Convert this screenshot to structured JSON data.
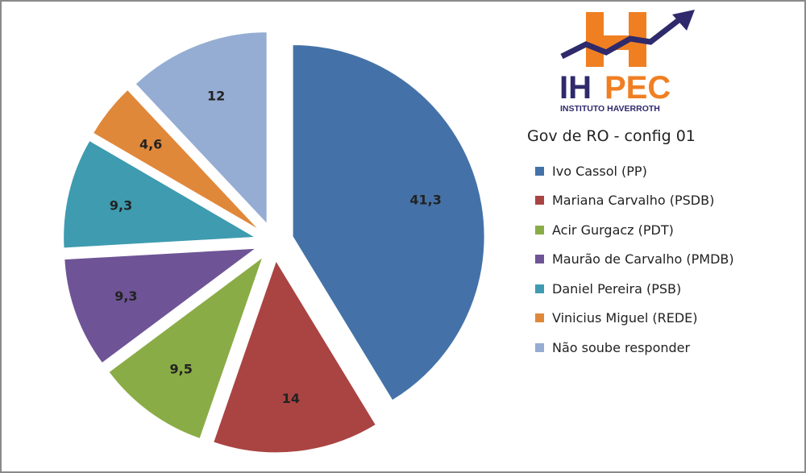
{
  "chart_data": {
    "type": "pie",
    "title": "Gov de RO - config 01",
    "legend_position": "right",
    "labels": [
      "Ivo Cassol (PP)",
      "Mariana Carvalho (PSDB)",
      "Acir Gurgacz (PDT)",
      "Maurão de Carvalho (PMDB)",
      "Daniel Pereira (PSB)",
      "Vinicius Miguel (REDE)",
      "Não soube responder"
    ],
    "values": [
      41.3,
      14,
      9.5,
      9.3,
      9.3,
      4.6,
      12
    ],
    "data_labels": [
      "41,3",
      "14",
      "9,5",
      "9,3",
      "9,3",
      "4,6",
      "12"
    ],
    "colors": [
      "#4472a8",
      "#a94442",
      "#8aac46",
      "#6e5496",
      "#3e9bb0",
      "#e0883a",
      "#95add3"
    ]
  },
  "logo": {
    "text": "IHPEC",
    "subtitle": "INSTITUTO HAVERROTH",
    "orange": "#f07f22",
    "navy": "#2e2a6b"
  }
}
